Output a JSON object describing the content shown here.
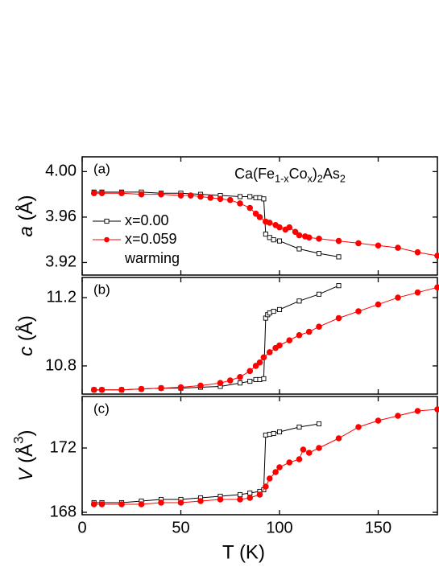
{
  "chart_data": [
    {
      "type": "line",
      "panel_label": "(a)",
      "ylabel": [
        {
          "text": "a",
          "style": "italic"
        },
        {
          "text": " (Å)"
        }
      ],
      "annotation": [
        {
          "text": "Ca(Fe"
        },
        {
          "text": "1-x",
          "style": "sub"
        },
        {
          "text": "Co"
        },
        {
          "text": "x",
          "style": "sub"
        },
        {
          "text": ")"
        },
        {
          "text": "2",
          "style": "sub"
        },
        {
          "text": "As"
        },
        {
          "text": "2",
          "style": "sub"
        }
      ],
      "legend_note": "warming",
      "xlim": [
        0,
        180
      ],
      "xticks": [
        0,
        50,
        100,
        150
      ],
      "ylim": [
        3.909,
        4.013
      ],
      "yticks": [
        {
          "value": 3.92,
          "label": "3.92"
        },
        {
          "value": 3.96,
          "label": "3.96"
        },
        {
          "value": 4.0,
          "label": "4.00"
        }
      ],
      "series": [
        {
          "name": "x=0.00",
          "color": "#000000",
          "marker": "open-square",
          "x": [
            6,
            10,
            20,
            30,
            40,
            50,
            60,
            70,
            80,
            85,
            88,
            90,
            92,
            93,
            95,
            97,
            100,
            110,
            120,
            130
          ],
          "values": [
            3.982,
            3.982,
            3.982,
            3.982,
            3.981,
            3.981,
            3.98,
            3.979,
            3.978,
            3.978,
            3.977,
            3.977,
            3.976,
            3.945,
            3.942,
            3.94,
            3.939,
            3.932,
            3.928,
            3.925
          ]
        },
        {
          "name": "x=0.059",
          "color": "#ff0000",
          "marker": "filled-circle",
          "x": [
            6,
            10,
            20,
            30,
            40,
            50,
            55,
            60,
            65,
            70,
            75,
            80,
            85,
            88,
            90,
            93,
            95,
            98,
            100,
            103,
            105,
            108,
            110,
            113,
            115,
            120,
            130,
            140,
            150,
            160,
            170,
            180
          ],
          "values": [
            3.981,
            3.981,
            3.981,
            3.98,
            3.98,
            3.979,
            3.979,
            3.978,
            3.977,
            3.976,
            3.975,
            3.972,
            3.968,
            3.963,
            3.96,
            3.956,
            3.955,
            3.953,
            3.951,
            3.949,
            3.951,
            3.947,
            3.944,
            3.943,
            3.942,
            3.941,
            3.939,
            3.937,
            3.935,
            3.933,
            3.929,
            3.926
          ]
        }
      ]
    },
    {
      "type": "line",
      "panel_label": "(b)",
      "ylabel": [
        {
          "text": "c",
          "style": "italic"
        },
        {
          "text": " (Å)"
        }
      ],
      "xlim": [
        0,
        180
      ],
      "xticks": [
        0,
        50,
        100,
        150
      ],
      "ylim": [
        10.635,
        11.318
      ],
      "yticks": [
        10.8,
        11.2
      ],
      "series": [
        {
          "color": "#000000",
          "marker": "open-square",
          "x": [
            6,
            10,
            20,
            30,
            40,
            50,
            60,
            70,
            80,
            85,
            88,
            90,
            92,
            93,
            94,
            95,
            97,
            100,
            110,
            120,
            130
          ],
          "values": [
            10.66,
            10.66,
            10.66,
            10.665,
            10.67,
            10.67,
            10.675,
            10.68,
            10.7,
            10.71,
            10.72,
            10.72,
            10.725,
            11.08,
            11.1,
            11.11,
            11.12,
            11.13,
            11.18,
            11.22,
            11.27
          ]
        },
        {
          "color": "#ff0000",
          "marker": "filled-circle",
          "x": [
            6,
            10,
            20,
            30,
            40,
            50,
            60,
            70,
            75,
            80,
            85,
            88,
            90,
            92,
            95,
            98,
            100,
            105,
            110,
            115,
            120,
            130,
            140,
            150,
            160,
            170,
            180
          ],
          "values": [
            10.66,
            10.66,
            10.66,
            10.665,
            10.67,
            10.675,
            10.685,
            10.7,
            10.715,
            10.735,
            10.77,
            10.8,
            10.82,
            10.85,
            10.88,
            10.905,
            10.92,
            10.95,
            10.98,
            11.0,
            11.03,
            11.08,
            11.12,
            11.16,
            11.2,
            11.23,
            11.26
          ]
        }
      ]
    },
    {
      "type": "line",
      "panel_label": "(c)",
      "ylabel": [
        {
          "text": "V",
          "style": "italic"
        },
        {
          "text": " (Å"
        },
        {
          "text": "3",
          "style": "sup"
        },
        {
          "text": ")"
        }
      ],
      "xlabel": "T (K)",
      "x_tick_labels": true,
      "xlim": [
        0,
        180
      ],
      "xticks": [
        0,
        50,
        100,
        150
      ],
      "ylim": [
        167.85,
        175.2
      ],
      "yticks": [
        168,
        172
      ],
      "series": [
        {
          "color": "#000000",
          "marker": "open-square",
          "x": [
            6,
            10,
            20,
            30,
            40,
            50,
            60,
            70,
            80,
            85,
            90,
            92,
            93,
            95,
            97,
            100,
            110,
            120
          ],
          "values": [
            168.6,
            168.6,
            168.6,
            168.7,
            168.8,
            168.8,
            168.9,
            169.0,
            169.1,
            169.2,
            169.3,
            169.4,
            172.8,
            172.85,
            172.9,
            173.0,
            173.3,
            173.5
          ]
        },
        {
          "color": "#ff0000",
          "marker": "filled-circle",
          "x": [
            6,
            10,
            20,
            30,
            40,
            50,
            60,
            70,
            80,
            85,
            90,
            93,
            95,
            98,
            100,
            105,
            110,
            112,
            115,
            120,
            130,
            140,
            150,
            160,
            170,
            180
          ],
          "values": [
            168.5,
            168.5,
            168.5,
            168.5,
            168.6,
            168.6,
            168.7,
            168.8,
            168.8,
            168.9,
            169.1,
            169.6,
            170.1,
            170.5,
            170.8,
            171.1,
            171.3,
            171.9,
            171.7,
            172.0,
            172.6,
            173.3,
            173.7,
            174.0,
            174.3,
            174.4
          ]
        }
      ]
    }
  ]
}
